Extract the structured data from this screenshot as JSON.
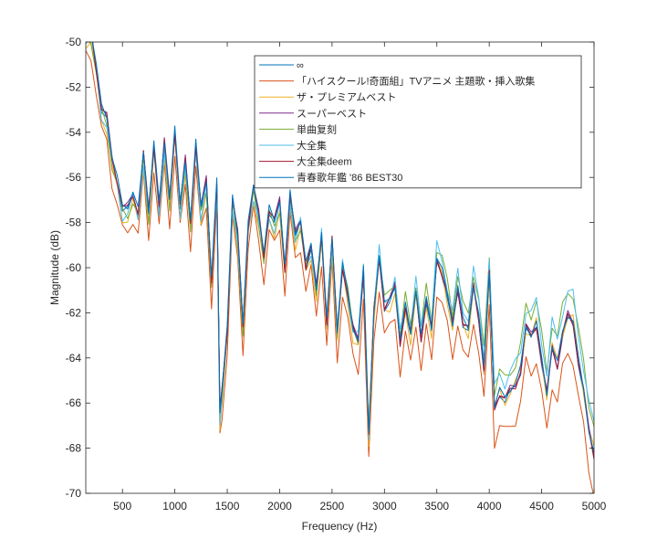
{
  "chart_data": {
    "type": "line",
    "title": "",
    "xlabel": "Frequency (Hz)",
    "ylabel": "Magnitude (dB)",
    "xlim": [
      150,
      5000
    ],
    "ylim": [
      -70,
      -50
    ],
    "xticks": [
      500,
      1000,
      1500,
      2000,
      2500,
      3000,
      3500,
      4000,
      4500,
      5000
    ],
    "xtick_labels": [
      "500",
      "1000",
      "1500",
      "2000",
      "2500",
      "3000",
      "3500",
      "4000",
      "4500",
      "5000"
    ],
    "yticks": [
      -70,
      -68,
      -66,
      -64,
      -62,
      -60,
      -58,
      -56,
      -54,
      -52,
      -50
    ],
    "ytick_labels": [
      "-70",
      "-68",
      "-66",
      "-64",
      "-62",
      "-60",
      "-58",
      "-56",
      "-54",
      "-52",
      "-50"
    ],
    "grid": false,
    "legend_position": "top-right",
    "base_curve": {
      "x": [
        150,
        200,
        250,
        300,
        350,
        400,
        450,
        500,
        550,
        600,
        650,
        700,
        750,
        800,
        850,
        900,
        950,
        1000,
        1050,
        1100,
        1150,
        1200,
        1250,
        1300,
        1350,
        1400,
        1430,
        1450,
        1500,
        1550,
        1600,
        1650,
        1700,
        1750,
        1800,
        1850,
        1900,
        1950,
        2000,
        2050,
        2100,
        2150,
        2200,
        2250,
        2300,
        2350,
        2400,
        2450,
        2500,
        2550,
        2600,
        2650,
        2700,
        2750,
        2800,
        2850,
        2900,
        2950,
        3000,
        3050,
        3100,
        3150,
        3200,
        3250,
        3300,
        3350,
        3400,
        3450,
        3500,
        3550,
        3600,
        3650,
        3700,
        3750,
        3800,
        3850,
        3900,
        3950,
        4000,
        4050,
        4100,
        4150,
        4200,
        4250,
        4300,
        4350,
        4400,
        4450,
        4500,
        4550,
        4600,
        4650,
        4700,
        4750,
        4800,
        4850,
        4900,
        4950,
        5000
      ],
      "y": [
        -49.6,
        -49.6,
        -51.2,
        -53.0,
        -53.4,
        -55.2,
        -56.2,
        -57.4,
        -57.4,
        -56.8,
        -57.6,
        -55.0,
        -57.6,
        -54.6,
        -57.3,
        -54.5,
        -57.0,
        -54.0,
        -57.3,
        -55.3,
        -58.0,
        -54.6,
        -57.4,
        -56.2,
        -60.6,
        -56.3,
        -66.5,
        -65.5,
        -62.8,
        -57.0,
        -58.6,
        -62.6,
        -58.2,
        -56.5,
        -57.7,
        -59.5,
        -57.5,
        -58.0,
        -57.1,
        -60.1,
        -56.8,
        -58.6,
        -58.0,
        -60.0,
        -59.1,
        -61.0,
        -58.6,
        -62.5,
        -58.8,
        -62.9,
        -60.0,
        -61.3,
        -62.8,
        -63.3,
        -60.2,
        -67.5,
        -62.0,
        -59.6,
        -61.8,
        -61.5,
        -60.9,
        -63.4,
        -61.8,
        -63.0,
        -61.1,
        -63.2,
        -61.5,
        -62.8,
        -59.7,
        -60.3,
        -61.3,
        -62.6,
        -61.0,
        -62.5,
        -62.8,
        -60.9,
        -62.3,
        -64.6,
        -60.3,
        -66.3,
        -65.6,
        -65.9,
        -65.5,
        -65.3,
        -64.6,
        -62.7,
        -63.1,
        -62.6,
        -64.2,
        -65.7,
        -63.6,
        -64.4,
        -63.0,
        -62.2,
        -62.5,
        -64.2,
        -65.5,
        -67.3,
        -68.4
      ]
    },
    "series": [
      {
        "name": "∞",
        "color": "#0072BD",
        "offset": 0.0,
        "jitter": 0.15
      },
      {
        "name": "「ハイスクール!奇面組」TVアニメ 主題歌・挿入歌集",
        "color": "#D95319",
        "offset": -1.0,
        "jitter": 0.3,
        "boost_high": -0.6
      },
      {
        "name": "ザ・プレミアムベスト",
        "color": "#EDB120",
        "offset": -0.4,
        "jitter": 0.3,
        "boost_high": 0.6
      },
      {
        "name": "スーパーベスト",
        "color": "#7E2F8E",
        "offset": 0.1,
        "jitter": 0.2
      },
      {
        "name": "単曲复刻",
        "color": "#77AC30",
        "offset": -0.2,
        "jitter": 0.3,
        "boost_high": 1.6
      },
      {
        "name": "大全集",
        "color": "#4DBEEE",
        "offset": -0.2,
        "jitter": 0.35,
        "boost_high": 1.5
      },
      {
        "name": "大全集deem",
        "color": "#A2142F",
        "offset": 0.05,
        "jitter": 0.15
      },
      {
        "name": "青春歌年鑑 '86 BEST30",
        "color": "#0072BD",
        "offset": 0.15,
        "jitter": 0.15
      }
    ]
  }
}
